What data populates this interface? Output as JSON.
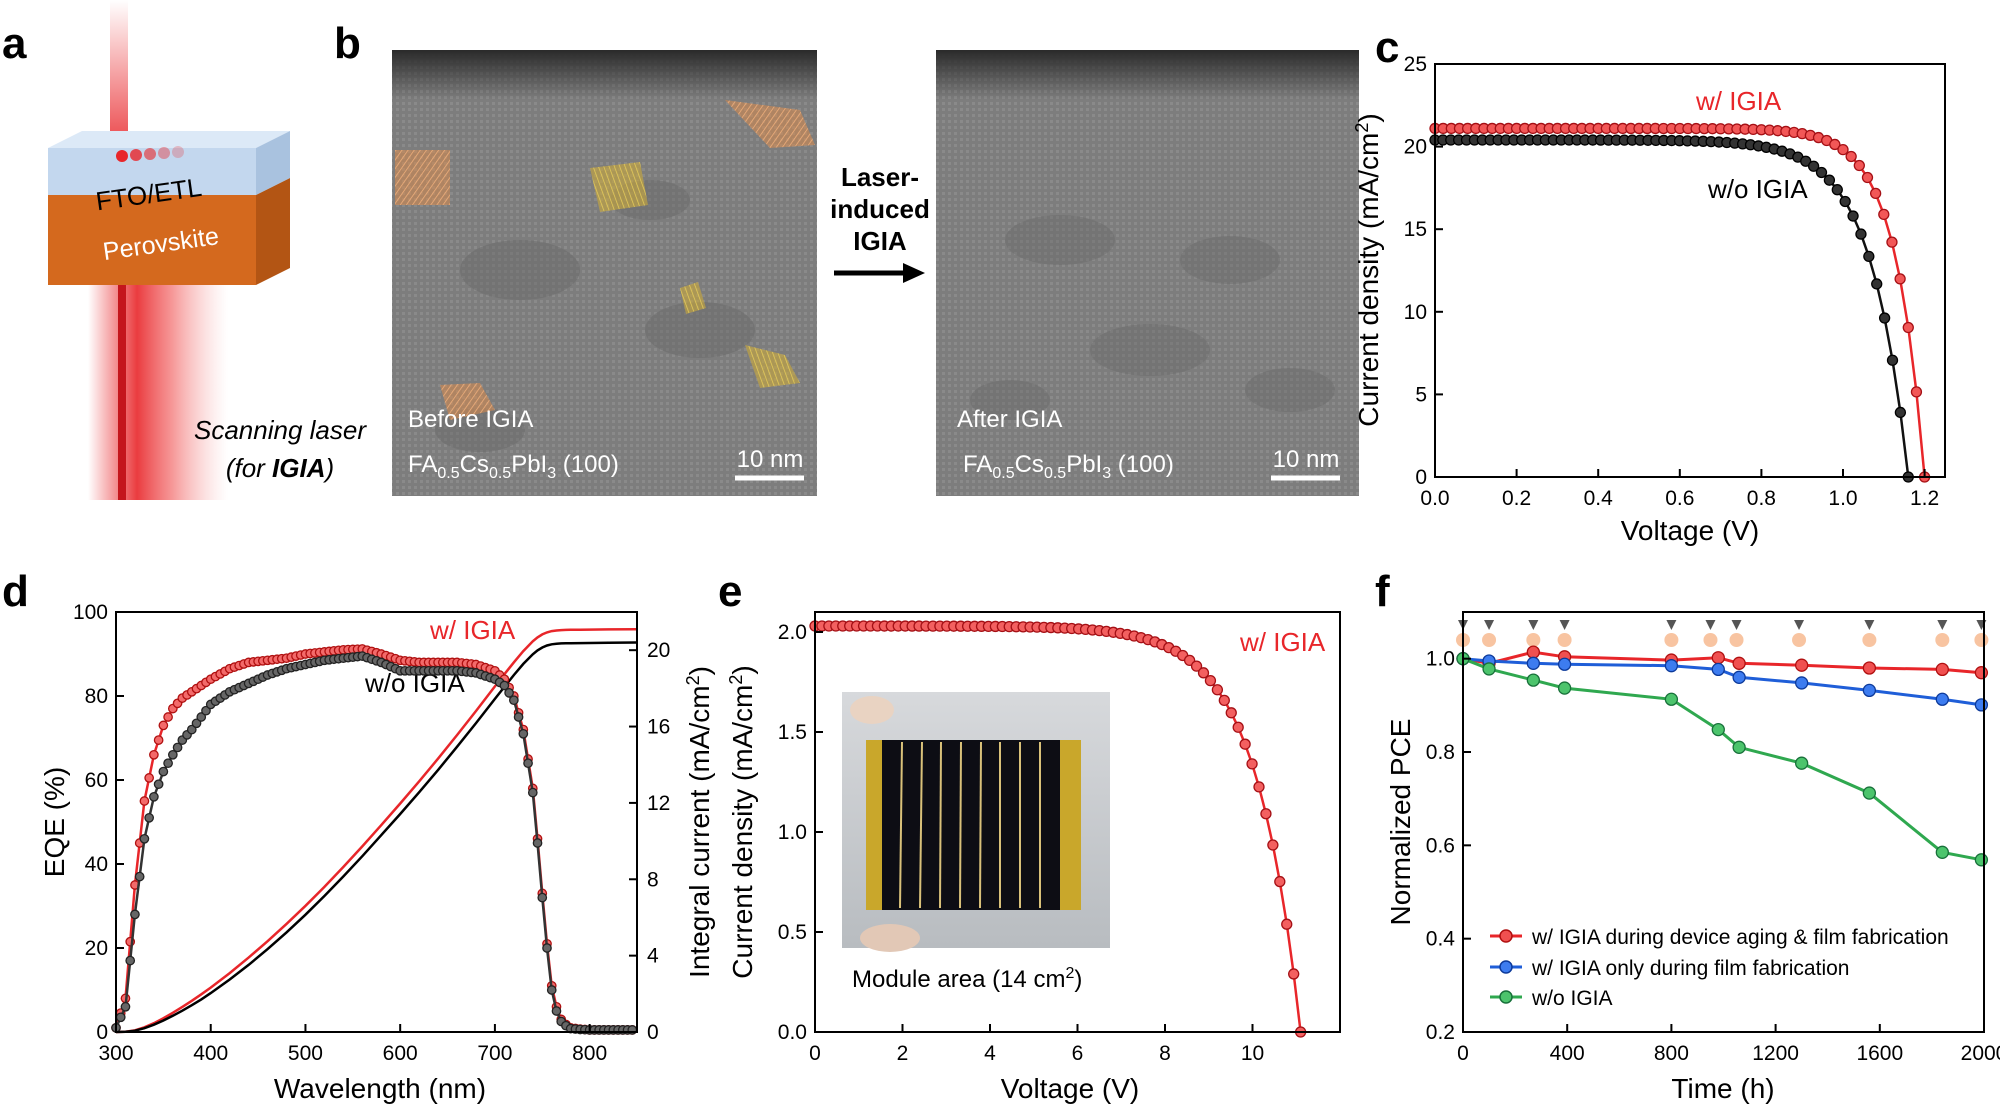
{
  "colors": {
    "red": "#e8262a",
    "black": "#111111",
    "gray": "#555555",
    "blue": "#1f5ed8",
    "green": "#2fa84f",
    "laser": "#e8262a",
    "fto": "#c9dcf2",
    "perovskite": "#d4691e"
  },
  "panel_a": {
    "letter": "a",
    "top_layer": "FTO/ETL",
    "bottom_layer": "Perovskite",
    "caption_line1": "Scanning laser",
    "caption_line2_pre": "(for ",
    "caption_line2_bold": "IGIA",
    "caption_line2_post": ")"
  },
  "panel_b": {
    "letter": "b",
    "arrow_line1": "Laser-",
    "arrow_line2": "induced",
    "arrow_line3": "IGIA",
    "before": {
      "label": "Before IGIA",
      "formula_fa": "FA",
      "formula_fa_sub": "0.5",
      "formula_cs": "Cs",
      "formula_cs_sub": "0.5",
      "formula_pb": "PbI",
      "formula_pb_sub": "3",
      "formula_facet": " (100)",
      "scalebar": "10 nm"
    },
    "after": {
      "label": "After IGIA",
      "formula_fa": "FA",
      "formula_fa_sub": "0.5",
      "formula_cs": "Cs",
      "formula_cs_sub": "0.5",
      "formula_pb": "PbI",
      "formula_pb_sub": "3",
      "formula_facet": " (100)",
      "scalebar": "10 nm"
    }
  },
  "chart_data": [
    {
      "id": "c",
      "letter": "c",
      "type": "line",
      "xlabel": "Voltage (V)",
      "ylabel_main": "Current density (mA/cm",
      "ylabel_sup": "2",
      "ylabel_end": ")",
      "xlim": [
        0,
        1.25
      ],
      "ylim": [
        0,
        25
      ],
      "xticks": [
        "0.0",
        "0.2",
        "0.4",
        "0.6",
        "0.8",
        "1.0",
        "1.2"
      ],
      "yticks": [
        "0",
        "5",
        "10",
        "15",
        "20",
        "25"
      ],
      "series": [
        {
          "name": "w/ IGIA",
          "jsc": 21.1,
          "voc": 1.2,
          "curve": 14
        },
        {
          "name": "w/o IGIA",
          "jsc": 20.4,
          "voc": 1.16,
          "curve": 11
        }
      ]
    },
    {
      "id": "d",
      "letter": "d",
      "type": "line",
      "xlabel": "Wavelength (nm)",
      "ylabel": "EQE (%)",
      "ylabel_right_main": "Integral current (mA/cm",
      "ylabel_right_sup": "2",
      "ylabel_right_end": ")",
      "xlim": [
        300,
        850
      ],
      "ylim": [
        0,
        100
      ],
      "ylim_right": [
        0,
        22
      ],
      "xticks": [
        "300",
        "400",
        "500",
        "600",
        "700",
        "800"
      ],
      "yticks": [
        "0",
        "20",
        "40",
        "60",
        "80",
        "100"
      ],
      "yticks_right": [
        "0",
        "4",
        "8",
        "12",
        "16",
        "20"
      ],
      "series": [
        {
          "name": "w/ IGIA",
          "x": [
            300,
            310,
            320,
            330,
            340,
            350,
            360,
            370,
            380,
            390,
            400,
            420,
            440,
            460,
            480,
            500,
            520,
            540,
            560,
            580,
            600,
            620,
            640,
            660,
            680,
            700,
            710,
            720,
            730,
            740,
            745,
            750,
            755,
            760,
            765,
            770,
            775,
            780,
            790,
            800,
            820,
            850
          ],
          "y": [
            1,
            8,
            35,
            55,
            66,
            73,
            77,
            79.5,
            81,
            82.5,
            84,
            86.5,
            88,
            88.5,
            89,
            90,
            90.5,
            91,
            91.2,
            90,
            88.5,
            88,
            88,
            88,
            87.5,
            86,
            84,
            80,
            72,
            58,
            46,
            33,
            21,
            11,
            6,
            3,
            1.8,
            1,
            0.7,
            0.5,
            0.5,
            0.5
          ]
        },
        {
          "name": "w/o IGIA",
          "x": [
            300,
            310,
            320,
            330,
            340,
            350,
            360,
            370,
            380,
            390,
            400,
            420,
            440,
            460,
            480,
            500,
            520,
            540,
            560,
            580,
            600,
            620,
            640,
            660,
            680,
            700,
            710,
            720,
            730,
            740,
            745,
            750,
            755,
            760,
            765,
            770,
            775,
            780,
            790,
            800,
            820,
            850
          ],
          "y": [
            1,
            6,
            28,
            46,
            56,
            62,
            66,
            69.5,
            72,
            75,
            78,
            81,
            83,
            85,
            86.5,
            87.5,
            88.5,
            89,
            89.5,
            88,
            86,
            86,
            86,
            86,
            85.5,
            84,
            82.5,
            79,
            71,
            57,
            45,
            32,
            20,
            10,
            5,
            2.5,
            1.5,
            0.8,
            0.6,
            0.5,
            0.5,
            0.5
          ]
        }
      ],
      "integral": [
        {
          "name": "w/ IGIA",
          "final": 21.1
        },
        {
          "name": "w/o IGIA",
          "final": 20.4
        }
      ]
    },
    {
      "id": "e",
      "letter": "e",
      "type": "line",
      "xlabel": "Voltage (V)",
      "ylabel_main": "Current density (mA/cm",
      "ylabel_sup": "2",
      "ylabel_end": ")",
      "xlim": [
        0,
        12
      ],
      "ylim": [
        0,
        2.1
      ],
      "xticks": [
        "0",
        "2",
        "4",
        "6",
        "8",
        "10"
      ],
      "yticks": [
        "0.0",
        "0.5",
        "1.0",
        "1.5",
        "2.0"
      ],
      "series": [
        {
          "name": "w/ IGIA",
          "jsc": 2.03,
          "voc": 11.1,
          "curve": 9
        }
      ],
      "inset_caption_main": "Module area (14 cm",
      "inset_caption_sup": "2",
      "inset_caption_end": ")"
    },
    {
      "id": "f",
      "letter": "f",
      "type": "line",
      "xlabel": "Time (h)",
      "ylabel": "Normalized PCE",
      "xlim": [
        0,
        2000
      ],
      "ylim": [
        0.2,
        1.1
      ],
      "xticks": [
        "0",
        "400",
        "800",
        "1200",
        "1600",
        "2000"
      ],
      "yticks": [
        "0.2",
        "0.4",
        "0.6",
        "0.8",
        "1.0"
      ],
      "laser_marks": [
        0,
        100,
        270,
        390,
        800,
        950,
        1050,
        1290,
        1560,
        1840,
        1990
      ],
      "series": [
        {
          "name": "w/ IGIA during device aging & film fabrication",
          "x": [
            0,
            100,
            270,
            390,
            800,
            980,
            1060,
            1300,
            1560,
            1840,
            1990
          ],
          "y": [
            1.0,
            0.99,
            1.014,
            1.004,
            0.997,
            1.002,
            0.99,
            0.986,
            0.98,
            0.977,
            0.97
          ]
        },
        {
          "name": "w/ IGIA only during film fabrication",
          "x": [
            0,
            100,
            270,
            390,
            800,
            980,
            1060,
            1300,
            1560,
            1840,
            1990
          ],
          "y": [
            1.0,
            0.995,
            0.99,
            0.988,
            0.985,
            0.977,
            0.96,
            0.948,
            0.932,
            0.913,
            0.901
          ]
        },
        {
          "name": "w/o IGIA",
          "x": [
            0,
            100,
            270,
            390,
            800,
            980,
            1060,
            1300,
            1560,
            1840,
            1990
          ],
          "y": [
            1.0,
            0.978,
            0.954,
            0.937,
            0.913,
            0.848,
            0.81,
            0.776,
            0.712,
            0.585,
            0.569
          ]
        }
      ]
    }
  ]
}
